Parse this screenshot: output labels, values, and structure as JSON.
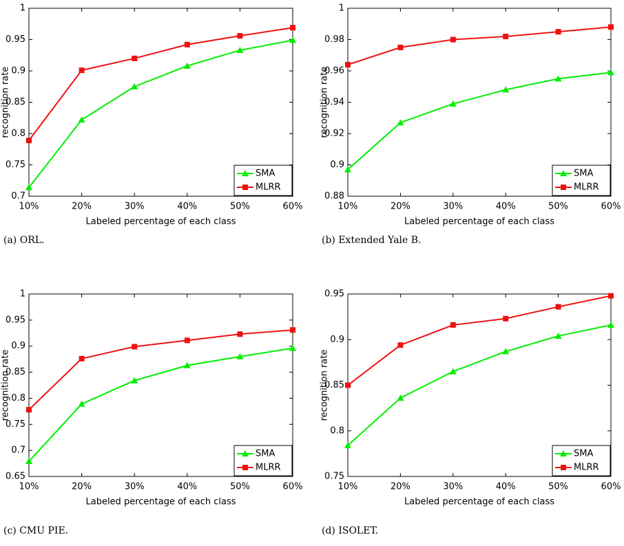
{
  "chart_data": [
    {
      "type": "line",
      "caption": "(a) ORL.",
      "xlabel": "Labeled percentage of each class",
      "ylabel": "recognition rate",
      "categories": [
        "10%",
        "20%",
        "30%",
        "40%",
        "50%",
        "60%"
      ],
      "ylim": [
        0.7,
        1
      ],
      "yticks": [
        0.7,
        0.75,
        0.8,
        0.85,
        0.9,
        0.95,
        1
      ],
      "legend": "lower right",
      "series": [
        {
          "name": "SMA",
          "color": "#00ee00",
          "marker": "triangle",
          "values": [
            0.714,
            0.822,
            0.875,
            0.908,
            0.933,
            0.949
          ]
        },
        {
          "name": "MLRR",
          "color": "#ee1111",
          "marker": "square",
          "values": [
            0.789,
            0.901,
            0.92,
            0.942,
            0.956,
            0.969
          ]
        }
      ]
    },
    {
      "type": "line",
      "caption": "(b) Extended Yale B.",
      "xlabel": "Labeled percentage of each class",
      "ylabel": "recognition rate",
      "categories": [
        "10%",
        "20%",
        "30%",
        "40%",
        "50%",
        "60%"
      ],
      "ylim": [
        0.88,
        1
      ],
      "yticks": [
        0.88,
        0.9,
        0.92,
        0.94,
        0.96,
        0.98,
        1
      ],
      "legend": "lower right",
      "series": [
        {
          "name": "SMA",
          "color": "#00ee00",
          "marker": "triangle",
          "values": [
            0.897,
            0.927,
            0.939,
            0.948,
            0.955,
            0.959
          ]
        },
        {
          "name": "MLRR",
          "color": "#ee1111",
          "marker": "square",
          "values": [
            0.964,
            0.975,
            0.98,
            0.982,
            0.985,
            0.988
          ]
        }
      ]
    },
    {
      "type": "line",
      "caption": "(c) CMU PIE.",
      "xlabel": "Labeled percentage of each class",
      "ylabel": "recognition rate",
      "categories": [
        "10%",
        "20%",
        "30%",
        "40%",
        "50%",
        "60%"
      ],
      "ylim": [
        0.65,
        1
      ],
      "yticks": [
        0.65,
        0.7,
        0.75,
        0.8,
        0.85,
        0.9,
        0.95,
        1
      ],
      "legend": "lower right",
      "series": [
        {
          "name": "SMA",
          "color": "#00ee00",
          "marker": "triangle",
          "values": [
            0.679,
            0.789,
            0.834,
            0.863,
            0.88,
            0.896
          ]
        },
        {
          "name": "MLRR",
          "color": "#ee1111",
          "marker": "square",
          "values": [
            0.778,
            0.876,
            0.899,
            0.911,
            0.923,
            0.931
          ]
        }
      ]
    },
    {
      "type": "line",
      "caption": "(d) ISOLET.",
      "xlabel": "Labeled percentage of each class",
      "ylabel": "recognition rate",
      "categories": [
        "10%",
        "20%",
        "30%",
        "40%",
        "50%",
        "60%"
      ],
      "ylim": [
        0.75,
        0.95
      ],
      "yticks": [
        0.75,
        0.8,
        0.85,
        0.9,
        0.95
      ],
      "legend": "lower right",
      "series": [
        {
          "name": "SMA",
          "color": "#00ee00",
          "marker": "triangle",
          "values": [
            0.784,
            0.836,
            0.865,
            0.887,
            0.904,
            0.916
          ]
        },
        {
          "name": "MLRR",
          "color": "#ee1111",
          "marker": "square",
          "values": [
            0.85,
            0.894,
            0.916,
            0.923,
            0.936,
            0.948
          ]
        }
      ]
    }
  ]
}
